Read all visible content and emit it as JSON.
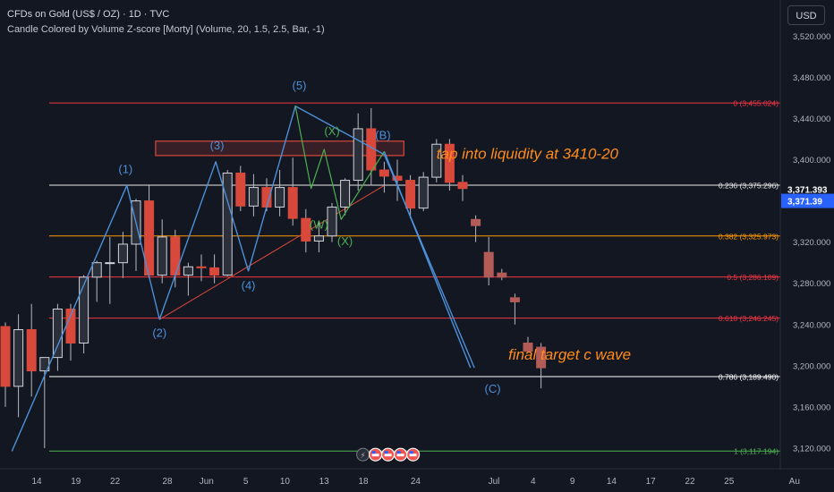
{
  "header": {
    "title": "CFDs on Gold (US$ / OZ) · 1D · TVC",
    "indicator": "Candle Colored by Volume Z-score [Morty] (Volume, 20, 1.5, 2.5, Bar, -1)",
    "currency_button": "USD"
  },
  "colors": {
    "background": "#131722",
    "bull_candle": "#2b2f3a",
    "bear_candle": "#d9493b",
    "wick": "#c8c8c8",
    "wave_line": "#4c90d8",
    "wave_label": "#4c90d8",
    "sub_wave_label": "#4caf50",
    "annotation": "#ff8c1a",
    "trendline": "#d9493b",
    "price_tag": "#2962ff"
  },
  "chart_data": {
    "type": "candlestick",
    "y_axis": {
      "min": 3100,
      "max": 3555,
      "ticks": [
        3120,
        3160,
        3200,
        3240,
        3280,
        3320,
        3360,
        3400,
        3440,
        3480,
        3520
      ],
      "tick_labels": [
        "3,120.000",
        "3,160.000",
        "3,200.000",
        "3,240.000",
        "3,280.000",
        "3,320.000",
        "3,360.000",
        "3,400.000",
        "3,440.000",
        "3,480.000",
        "3,520.000"
      ]
    },
    "x_axis": {
      "ticks": [
        {
          "label": "14",
          "bar": 0
        },
        {
          "label": "19",
          "bar": 3
        },
        {
          "label": "22",
          "bar": 6
        },
        {
          "label": "28",
          "bar": 10
        },
        {
          "label": "Jun",
          "bar": 13
        },
        {
          "label": "5",
          "bar": 16
        },
        {
          "label": "10",
          "bar": 19
        },
        {
          "label": "13",
          "bar": 22
        },
        {
          "label": "18",
          "bar": 25
        },
        {
          "label": "24",
          "bar": 29
        },
        {
          "label": "Jul",
          "bar": 35
        },
        {
          "label": "4",
          "bar": 38
        },
        {
          "label": "9",
          "bar": 41
        },
        {
          "label": "14",
          "bar": 44
        },
        {
          "label": "17",
          "bar": 47
        },
        {
          "label": "22",
          "bar": 50
        },
        {
          "label": "25",
          "bar": 53
        },
        {
          "label": "Au",
          "bar": 58
        }
      ]
    },
    "candles": [
      [
        3238,
        3242,
        3160,
        3180
      ],
      [
        3180,
        3250,
        3150,
        3235
      ],
      [
        3235,
        3260,
        3170,
        3195
      ],
      [
        3195,
        3208,
        3120,
        3208
      ],
      [
        3208,
        3260,
        3195,
        3255
      ],
      [
        3255,
        3260,
        3205,
        3222
      ],
      [
        3222,
        3288,
        3212,
        3286
      ],
      [
        3286,
        3302,
        3262,
        3300
      ],
      [
        3300,
        3325,
        3260,
        3300
      ],
      [
        3300,
        3330,
        3285,
        3318
      ],
      [
        3318,
        3362,
        3292,
        3360
      ],
      [
        3360,
        3375,
        3285,
        3288
      ],
      [
        3288,
        3342,
        3280,
        3325
      ],
      [
        3325,
        3332,
        3276,
        3288
      ],
      [
        3288,
        3300,
        3268,
        3296
      ],
      [
        3296,
        3308,
        3282,
        3295
      ],
      [
        3295,
        3308,
        3280,
        3288
      ],
      [
        3288,
        3390,
        3287,
        3387
      ],
      [
        3387,
        3394,
        3350,
        3355
      ],
      [
        3355,
        3386,
        3345,
        3373
      ],
      [
        3373,
        3382,
        3350,
        3354
      ],
      [
        3354,
        3390,
        3345,
        3373
      ],
      [
        3373,
        3402,
        3336,
        3343
      ],
      [
        3343,
        3352,
        3310,
        3321
      ],
      [
        3321,
        3340,
        3310,
        3326
      ],
      [
        3326,
        3358,
        3320,
        3354
      ],
      [
        3354,
        3382,
        3346,
        3380
      ],
      [
        3380,
        3445,
        3370,
        3430
      ],
      [
        3430,
        3450,
        3375,
        3390
      ],
      [
        3390,
        3398,
        3368,
        3384
      ],
      [
        3384,
        3400,
        3360,
        3380
      ],
      [
        3380,
        3385,
        3343,
        3353
      ],
      [
        3353,
        3388,
        3350,
        3383
      ],
      [
        3383,
        3420,
        3378,
        3415
      ],
      [
        3415,
        3420,
        3370,
        3378
      ],
      [
        3378,
        3385,
        3360,
        3372
      ],
      [
        3342,
        3346,
        3320,
        3336
      ],
      [
        3310,
        3325,
        3278,
        3286
      ],
      [
        3290,
        3294,
        3283,
        3286
      ],
      [
        3266,
        3270,
        3240,
        3262
      ],
      [
        3222,
        3228,
        3214,
        3214
      ],
      [
        3218,
        3222,
        3178,
        3198
      ]
    ],
    "fib_levels": [
      {
        "ratio": "0",
        "value": 3455.024,
        "label": "0 (3,455.024)",
        "color": "#f23645"
      },
      {
        "ratio": "0.236",
        "value": 3375.296,
        "label": "0.236 (3,375.296)",
        "color": "#e8e8e8"
      },
      {
        "ratio": "0.382",
        "value": 3325.973,
        "label": "0.382 (3,325.973)",
        "color": "#ff9800"
      },
      {
        "ratio": "0.5",
        "value": 3286.109,
        "label": "0.5 (3,286.109)",
        "color": "#f23645"
      },
      {
        "ratio": "0.618",
        "value": 3246.245,
        "label": "0.618 (3,246.245)",
        "color": "#f23645"
      },
      {
        "ratio": "0.786",
        "value": 3189.49,
        "label": "0.786 (3,189.490)",
        "color": "#ffffff"
      },
      {
        "ratio": "1",
        "value": 3117.194,
        "label": "1 (3,117.194)",
        "color": "#4caf50"
      }
    ],
    "price_tags": [
      {
        "value": 3371.393,
        "label": "3,371.393",
        "style": "dark"
      },
      {
        "value": 3360.0,
        "label": "3,371.39",
        "style": "blue"
      }
    ],
    "liquidity_zone": {
      "from_bar": 11.5,
      "to_bar": 30.5,
      "low": 3404,
      "high": 3418
    },
    "wave_path": [
      [
        0.5,
        3117
      ],
      [
        9.3,
        3375
      ],
      [
        11.8,
        3245
      ],
      [
        16.1,
        3398
      ],
      [
        18.6,
        3292
      ],
      [
        22.2,
        3452
      ],
      [
        29.0,
        3405
      ],
      [
        35.9,
        3198
      ]
    ],
    "wave_path_b": [
      [
        29.0,
        3408
      ],
      [
        35.6,
        3198
      ]
    ],
    "trendline": [
      [
        11.8,
        3245
      ],
      [
        29.0,
        3375
      ]
    ],
    "sub_wave_path": [
      [
        22.2,
        3452
      ],
      [
        23.4,
        3372
      ],
      [
        24.4,
        3410
      ],
      [
        25.7,
        3342
      ],
      [
        29.0,
        3408
      ]
    ],
    "wave_labels": [
      {
        "text": "(1)",
        "bar": 9.2,
        "price": 3387,
        "color": "wave"
      },
      {
        "text": "(2)",
        "bar": 11.8,
        "price": 3228,
        "color": "wave"
      },
      {
        "text": "(3)",
        "bar": 16.2,
        "price": 3410,
        "color": "wave"
      },
      {
        "text": "(4)",
        "bar": 18.6,
        "price": 3274,
        "color": "wave"
      },
      {
        "text": "(5)",
        "bar": 22.5,
        "price": 3468,
        "color": "wave"
      },
      {
        "text": "(B)",
        "bar": 28.9,
        "price": 3420,
        "color": "wave"
      },
      {
        "text": "(C)",
        "bar": 37.3,
        "price": 3174,
        "color": "wave"
      },
      {
        "text": "(X)",
        "bar": 25.0,
        "price": 3424,
        "color": "sub"
      },
      {
        "text": "(W)",
        "bar": 24.0,
        "price": 3333,
        "color": "sub"
      },
      {
        "text": "(X)",
        "bar": 26.0,
        "price": 3317,
        "color": "sub"
      }
    ],
    "annotations": [
      {
        "text": "tap into liquidity at 3410-20",
        "bar": 33.0,
        "price": 3401
      },
      {
        "text": "final target c wave",
        "bar": 38.5,
        "price": 3206
      }
    ],
    "event_icons": {
      "bar": 26.0,
      "price": 3112,
      "count": 4
    }
  }
}
